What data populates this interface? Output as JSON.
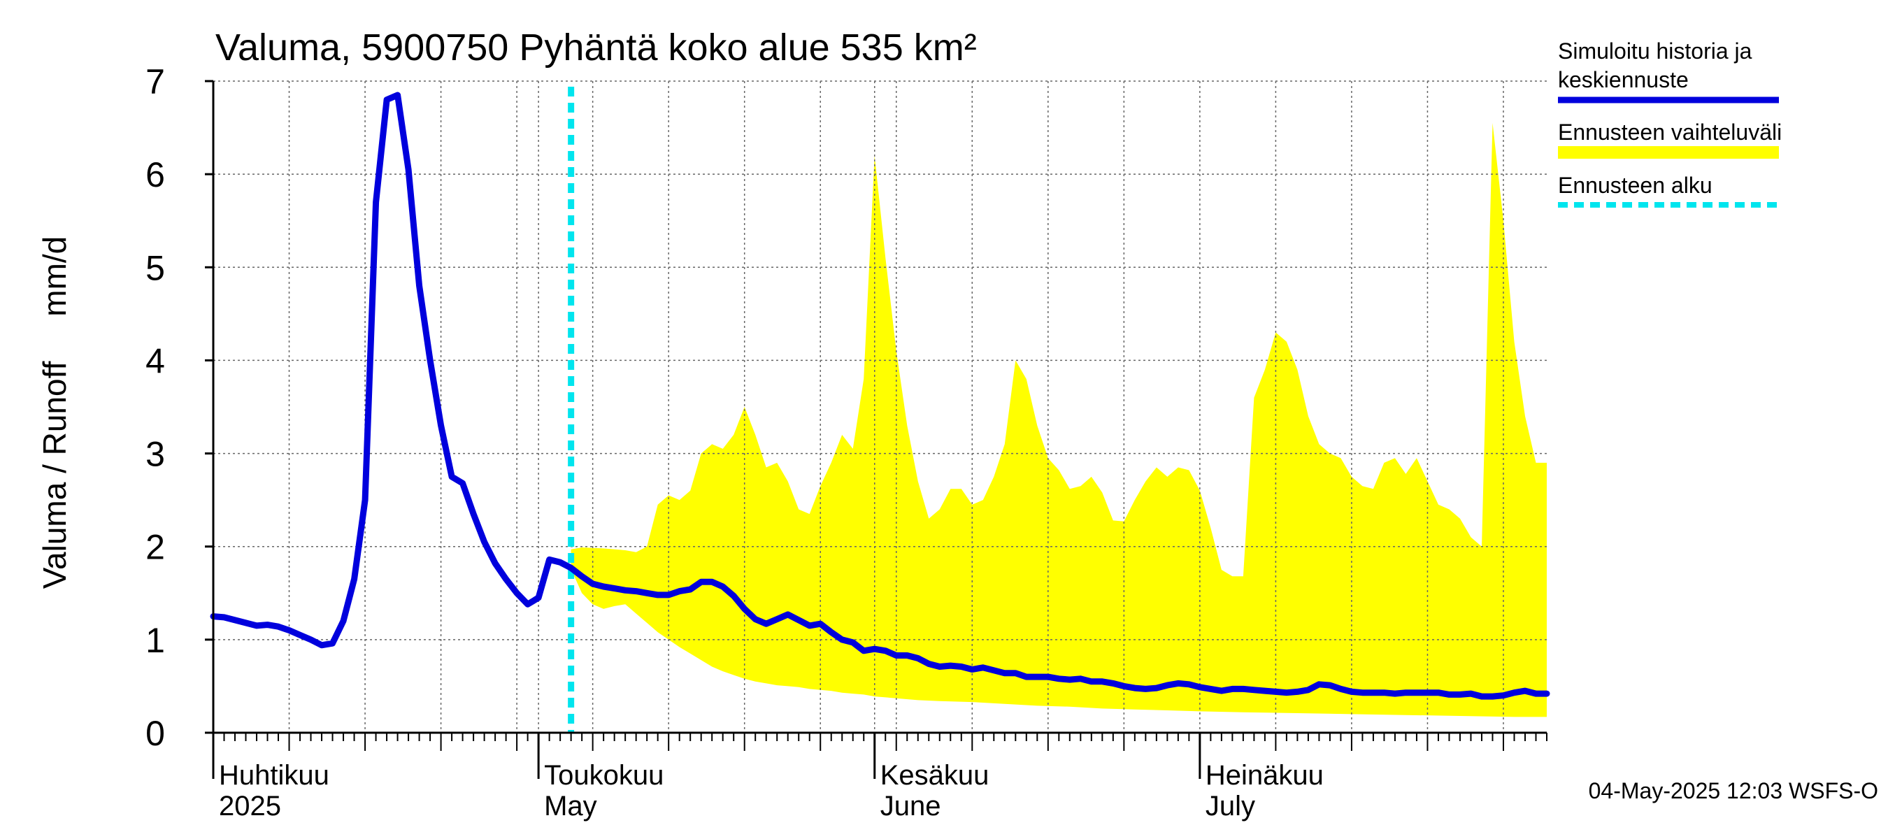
{
  "chart_data": {
    "type": "area",
    "title": "Valuma, 5900750 Pyhäntä koko alue 535 km²",
    "ylabel": "Valuma / Runoff     mm/d",
    "ylim": [
      0,
      7
    ],
    "y_ticks": [
      "0",
      "1",
      "2",
      "3",
      "4",
      "5",
      "6",
      "7"
    ],
    "x_start": "2025-04-01",
    "x_end": "2025-08-02",
    "forecast_start": "2025-05-04",
    "month_labels": [
      {
        "date": "2025-04-01",
        "fi": "Huhtikuu",
        "en": "2025"
      },
      {
        "date": "2025-05-01",
        "fi": "Toukokuu",
        "en": "May"
      },
      {
        "date": "2025-06-01",
        "fi": "Kesäkuu",
        "en": "June"
      },
      {
        "date": "2025-07-01",
        "fi": "Heinäkuu",
        "en": "July"
      }
    ],
    "series": [
      {
        "name": "Simuloitu historia ja keskiennuste",
        "color": "#0000dd",
        "points": [
          [
            "2025-04-01",
            1.25
          ],
          [
            "2025-04-02",
            1.24
          ],
          [
            "2025-04-03",
            1.21
          ],
          [
            "2025-04-04",
            1.18
          ],
          [
            "2025-04-05",
            1.15
          ],
          [
            "2025-04-06",
            1.16
          ],
          [
            "2025-04-07",
            1.14
          ],
          [
            "2025-04-08",
            1.1
          ],
          [
            "2025-04-09",
            1.05
          ],
          [
            "2025-04-10",
            1.0
          ],
          [
            "2025-04-11",
            0.94
          ],
          [
            "2025-04-12",
            0.96
          ],
          [
            "2025-04-13",
            1.2
          ],
          [
            "2025-04-14",
            1.65
          ],
          [
            "2025-04-15",
            2.5
          ],
          [
            "2025-04-16",
            5.7
          ],
          [
            "2025-04-17",
            6.8
          ],
          [
            "2025-04-18",
            6.85
          ],
          [
            "2025-04-19",
            6.05
          ],
          [
            "2025-04-20",
            4.8
          ],
          [
            "2025-04-21",
            4.0
          ],
          [
            "2025-04-22",
            3.3
          ],
          [
            "2025-04-23",
            2.75
          ],
          [
            "2025-04-24",
            2.68
          ],
          [
            "2025-04-25",
            2.35
          ],
          [
            "2025-04-26",
            2.05
          ],
          [
            "2025-04-27",
            1.82
          ],
          [
            "2025-04-28",
            1.65
          ],
          [
            "2025-04-29",
            1.5
          ],
          [
            "2025-04-30",
            1.38
          ],
          [
            "2025-05-01",
            1.45
          ],
          [
            "2025-05-02",
            1.86
          ],
          [
            "2025-05-03",
            1.83
          ],
          [
            "2025-05-04",
            1.77
          ],
          [
            "2025-05-05",
            1.68
          ],
          [
            "2025-05-06",
            1.6
          ],
          [
            "2025-05-07",
            1.57
          ],
          [
            "2025-05-08",
            1.55
          ],
          [
            "2025-05-09",
            1.53
          ],
          [
            "2025-05-10",
            1.52
          ],
          [
            "2025-05-11",
            1.5
          ],
          [
            "2025-05-12",
            1.48
          ],
          [
            "2025-05-13",
            1.48
          ],
          [
            "2025-05-14",
            1.52
          ],
          [
            "2025-05-15",
            1.54
          ],
          [
            "2025-05-16",
            1.62
          ],
          [
            "2025-05-17",
            1.62
          ],
          [
            "2025-05-18",
            1.57
          ],
          [
            "2025-05-19",
            1.47
          ],
          [
            "2025-05-20",
            1.33
          ],
          [
            "2025-05-21",
            1.22
          ],
          [
            "2025-05-22",
            1.17
          ],
          [
            "2025-05-23",
            1.22
          ],
          [
            "2025-05-24",
            1.27
          ],
          [
            "2025-05-25",
            1.21
          ],
          [
            "2025-05-26",
            1.15
          ],
          [
            "2025-05-27",
            1.17
          ],
          [
            "2025-05-28",
            1.08
          ],
          [
            "2025-05-29",
            1.0
          ],
          [
            "2025-05-30",
            0.97
          ],
          [
            "2025-05-31",
            0.88
          ],
          [
            "2025-06-01",
            0.9
          ],
          [
            "2025-06-02",
            0.88
          ],
          [
            "2025-06-03",
            0.83
          ],
          [
            "2025-06-04",
            0.83
          ],
          [
            "2025-06-05",
            0.8
          ],
          [
            "2025-06-06",
            0.74
          ],
          [
            "2025-06-07",
            0.71
          ],
          [
            "2025-06-08",
            0.72
          ],
          [
            "2025-06-09",
            0.71
          ],
          [
            "2025-06-10",
            0.68
          ],
          [
            "2025-06-11",
            0.7
          ],
          [
            "2025-06-12",
            0.67
          ],
          [
            "2025-06-13",
            0.64
          ],
          [
            "2025-06-14",
            0.64
          ],
          [
            "2025-06-15",
            0.6
          ],
          [
            "2025-06-16",
            0.6
          ],
          [
            "2025-06-17",
            0.6
          ],
          [
            "2025-06-18",
            0.58
          ],
          [
            "2025-06-19",
            0.57
          ],
          [
            "2025-06-20",
            0.58
          ],
          [
            "2025-06-21",
            0.55
          ],
          [
            "2025-06-22",
            0.55
          ],
          [
            "2025-06-23",
            0.53
          ],
          [
            "2025-06-24",
            0.5
          ],
          [
            "2025-06-25",
            0.48
          ],
          [
            "2025-06-26",
            0.47
          ],
          [
            "2025-06-27",
            0.48
          ],
          [
            "2025-06-28",
            0.51
          ],
          [
            "2025-06-29",
            0.53
          ],
          [
            "2025-06-30",
            0.52
          ],
          [
            "2025-07-01",
            0.49
          ],
          [
            "2025-07-02",
            0.47
          ],
          [
            "2025-07-03",
            0.45
          ],
          [
            "2025-07-04",
            0.47
          ],
          [
            "2025-07-05",
            0.47
          ],
          [
            "2025-07-06",
            0.46
          ],
          [
            "2025-07-07",
            0.45
          ],
          [
            "2025-07-08",
            0.44
          ],
          [
            "2025-07-09",
            0.43
          ],
          [
            "2025-07-10",
            0.44
          ],
          [
            "2025-07-11",
            0.46
          ],
          [
            "2025-07-12",
            0.52
          ],
          [
            "2025-07-13",
            0.51
          ],
          [
            "2025-07-14",
            0.47
          ],
          [
            "2025-07-15",
            0.44
          ],
          [
            "2025-07-16",
            0.43
          ],
          [
            "2025-07-17",
            0.43
          ],
          [
            "2025-07-18",
            0.43
          ],
          [
            "2025-07-19",
            0.42
          ],
          [
            "2025-07-20",
            0.43
          ],
          [
            "2025-07-21",
            0.43
          ],
          [
            "2025-07-22",
            0.43
          ],
          [
            "2025-07-23",
            0.43
          ],
          [
            "2025-07-24",
            0.41
          ],
          [
            "2025-07-25",
            0.41
          ],
          [
            "2025-07-26",
            0.42
          ],
          [
            "2025-07-27",
            0.39
          ],
          [
            "2025-07-28",
            0.39
          ],
          [
            "2025-07-29",
            0.4
          ],
          [
            "2025-07-30",
            0.43
          ],
          [
            "2025-07-31",
            0.45
          ],
          [
            "2025-08-01",
            0.42
          ],
          [
            "2025-08-02",
            0.42
          ]
        ]
      },
      {
        "name": "Ennusteen vaihteluväli",
        "color": "#ffff00",
        "band_upper": [
          [
            "2025-05-04",
            1.97
          ],
          [
            "2025-05-05",
            1.99
          ],
          [
            "2025-05-07",
            1.98
          ],
          [
            "2025-05-09",
            1.96
          ],
          [
            "2025-05-10",
            1.94
          ],
          [
            "2025-05-11",
            2.0
          ],
          [
            "2025-05-12",
            2.45
          ],
          [
            "2025-05-13",
            2.55
          ],
          [
            "2025-05-14",
            2.5
          ],
          [
            "2025-05-15",
            2.6
          ],
          [
            "2025-05-16",
            3.0
          ],
          [
            "2025-05-17",
            3.1
          ],
          [
            "2025-05-18",
            3.05
          ],
          [
            "2025-05-19",
            3.2
          ],
          [
            "2025-05-20",
            3.5
          ],
          [
            "2025-05-21",
            3.2
          ],
          [
            "2025-05-22",
            2.85
          ],
          [
            "2025-05-23",
            2.9
          ],
          [
            "2025-05-24",
            2.7
          ],
          [
            "2025-05-25",
            2.4
          ],
          [
            "2025-05-26",
            2.35
          ],
          [
            "2025-05-27",
            2.65
          ],
          [
            "2025-05-28",
            2.9
          ],
          [
            "2025-05-29",
            3.2
          ],
          [
            "2025-05-30",
            3.05
          ],
          [
            "2025-05-31",
            3.8
          ],
          [
            "2025-06-01",
            6.2
          ],
          [
            "2025-06-02",
            5.1
          ],
          [
            "2025-06-03",
            4.1
          ],
          [
            "2025-06-04",
            3.3
          ],
          [
            "2025-06-05",
            2.7
          ],
          [
            "2025-06-06",
            2.3
          ],
          [
            "2025-06-07",
            2.4
          ],
          [
            "2025-06-08",
            2.62
          ],
          [
            "2025-06-09",
            2.62
          ],
          [
            "2025-06-10",
            2.45
          ],
          [
            "2025-06-11",
            2.5
          ],
          [
            "2025-06-12",
            2.75
          ],
          [
            "2025-06-13",
            3.1
          ],
          [
            "2025-06-14",
            4.0
          ],
          [
            "2025-06-15",
            3.8
          ],
          [
            "2025-06-16",
            3.3
          ],
          [
            "2025-06-17",
            2.95
          ],
          [
            "2025-06-18",
            2.82
          ],
          [
            "2025-06-19",
            2.62
          ],
          [
            "2025-06-20",
            2.65
          ],
          [
            "2025-06-21",
            2.75
          ],
          [
            "2025-06-22",
            2.58
          ],
          [
            "2025-06-23",
            2.28
          ],
          [
            "2025-06-24",
            2.27
          ],
          [
            "2025-06-25",
            2.5
          ],
          [
            "2025-06-26",
            2.7
          ],
          [
            "2025-06-27",
            2.85
          ],
          [
            "2025-06-28",
            2.75
          ],
          [
            "2025-06-29",
            2.85
          ],
          [
            "2025-06-30",
            2.82
          ],
          [
            "2025-07-01",
            2.6
          ],
          [
            "2025-07-02",
            2.2
          ],
          [
            "2025-07-03",
            1.75
          ],
          [
            "2025-07-04",
            1.68
          ],
          [
            "2025-07-05",
            1.68
          ],
          [
            "2025-07-06",
            3.6
          ],
          [
            "2025-07-07",
            3.9
          ],
          [
            "2025-07-08",
            4.3
          ],
          [
            "2025-07-09",
            4.2
          ],
          [
            "2025-07-10",
            3.9
          ],
          [
            "2025-07-11",
            3.4
          ],
          [
            "2025-07-12",
            3.1
          ],
          [
            "2025-07-13",
            3.0
          ],
          [
            "2025-07-14",
            2.95
          ],
          [
            "2025-07-15",
            2.75
          ],
          [
            "2025-07-16",
            2.65
          ],
          [
            "2025-07-17",
            2.62
          ],
          [
            "2025-07-18",
            2.9
          ],
          [
            "2025-07-19",
            2.95
          ],
          [
            "2025-07-20",
            2.78
          ],
          [
            "2025-07-21",
            2.95
          ],
          [
            "2025-07-22",
            2.7
          ],
          [
            "2025-07-23",
            2.45
          ],
          [
            "2025-07-24",
            2.4
          ],
          [
            "2025-07-25",
            2.3
          ],
          [
            "2025-07-26",
            2.1
          ],
          [
            "2025-07-27",
            2.0
          ],
          [
            "2025-07-28",
            6.55
          ],
          [
            "2025-07-29",
            5.5
          ],
          [
            "2025-07-30",
            4.2
          ],
          [
            "2025-07-31",
            3.4
          ],
          [
            "2025-08-01",
            2.9
          ],
          [
            "2025-08-02",
            2.9
          ]
        ],
        "band_lower": [
          [
            "2025-05-04",
            1.76
          ],
          [
            "2025-05-05",
            1.5
          ],
          [
            "2025-05-06",
            1.38
          ],
          [
            "2025-05-07",
            1.33
          ],
          [
            "2025-05-08",
            1.36
          ],
          [
            "2025-05-09",
            1.38
          ],
          [
            "2025-05-10",
            1.28
          ],
          [
            "2025-05-11",
            1.18
          ],
          [
            "2025-05-12",
            1.08
          ],
          [
            "2025-05-13",
            1.0
          ],
          [
            "2025-05-14",
            0.92
          ],
          [
            "2025-05-15",
            0.85
          ],
          [
            "2025-05-16",
            0.78
          ],
          [
            "2025-05-17",
            0.71
          ],
          [
            "2025-05-18",
            0.66
          ],
          [
            "2025-05-19",
            0.62
          ],
          [
            "2025-05-20",
            0.58
          ],
          [
            "2025-05-21",
            0.55
          ],
          [
            "2025-05-22",
            0.53
          ],
          [
            "2025-05-23",
            0.51
          ],
          [
            "2025-05-24",
            0.5
          ],
          [
            "2025-05-25",
            0.49
          ],
          [
            "2025-05-26",
            0.47
          ],
          [
            "2025-05-27",
            0.46
          ],
          [
            "2025-05-28",
            0.45
          ],
          [
            "2025-05-29",
            0.43
          ],
          [
            "2025-05-30",
            0.42
          ],
          [
            "2025-05-31",
            0.41
          ],
          [
            "2025-06-01",
            0.39
          ],
          [
            "2025-06-03",
            0.37
          ],
          [
            "2025-06-05",
            0.35
          ],
          [
            "2025-06-07",
            0.34
          ],
          [
            "2025-06-10",
            0.33
          ],
          [
            "2025-06-13",
            0.31
          ],
          [
            "2025-06-16",
            0.29
          ],
          [
            "2025-06-19",
            0.28
          ],
          [
            "2025-06-22",
            0.26
          ],
          [
            "2025-06-25",
            0.25
          ],
          [
            "2025-06-28",
            0.24
          ],
          [
            "2025-07-01",
            0.23
          ],
          [
            "2025-07-05",
            0.22
          ],
          [
            "2025-07-10",
            0.21
          ],
          [
            "2025-07-15",
            0.2
          ],
          [
            "2025-07-20",
            0.19
          ],
          [
            "2025-07-25",
            0.18
          ],
          [
            "2025-07-30",
            0.17
          ],
          [
            "2025-08-02",
            0.17
          ]
        ]
      },
      {
        "name": "Ennusteen alku",
        "color": "#00e5ee"
      }
    ],
    "grid": true,
    "legend_position": "right"
  },
  "footer": {
    "timestamp": "04-May-2025 12:03 WSFS-O"
  }
}
